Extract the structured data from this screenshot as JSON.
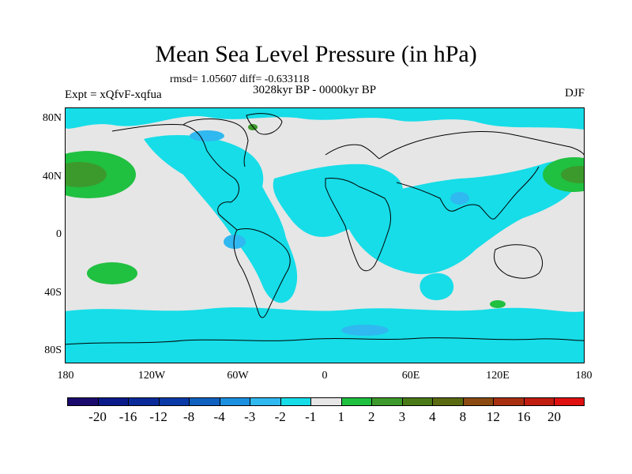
{
  "title": "Mean Sea Level Pressure (in hPa)",
  "stats": "rmsd= 1.05607 diff= -0.633118",
  "period": "3028kyr BP - 0000kyr BP",
  "experiment": "Expt = xQfvF-xqfua",
  "season": "DJF",
  "lat_labels": [
    "80N",
    "40N",
    "0",
    "40S",
    "80S"
  ],
  "lon_labels": [
    "180",
    "120W",
    "60W",
    "0",
    "60E",
    "120E",
    "180"
  ],
  "colorbar": {
    "colors": [
      "#1a0a6e",
      "#0a1a8a",
      "#0a2a9a",
      "#0a3aa8",
      "#1060c0",
      "#1c90e0",
      "#30b8f0",
      "#16dde8",
      "#e6e6e6",
      "#20c040",
      "#3c9a2c",
      "#4a7a18",
      "#5a6a10",
      "#8a4a10",
      "#a83010",
      "#c01c10",
      "#e01010"
    ],
    "labels": [
      "-20",
      "-16",
      "-12",
      "-8",
      "-4",
      "-3",
      "-2",
      "-1",
      "1",
      "2",
      "3",
      "4",
      "8",
      "12",
      "16",
      "20"
    ]
  },
  "map": {
    "ocean_color": "#e6e6e6",
    "neg_color": "#16dde8",
    "neg2_color": "#30b8f0",
    "pos_color": "#20c040",
    "pos2_color": "#3c9a2c",
    "pos3_color": "#4a7a18"
  }
}
